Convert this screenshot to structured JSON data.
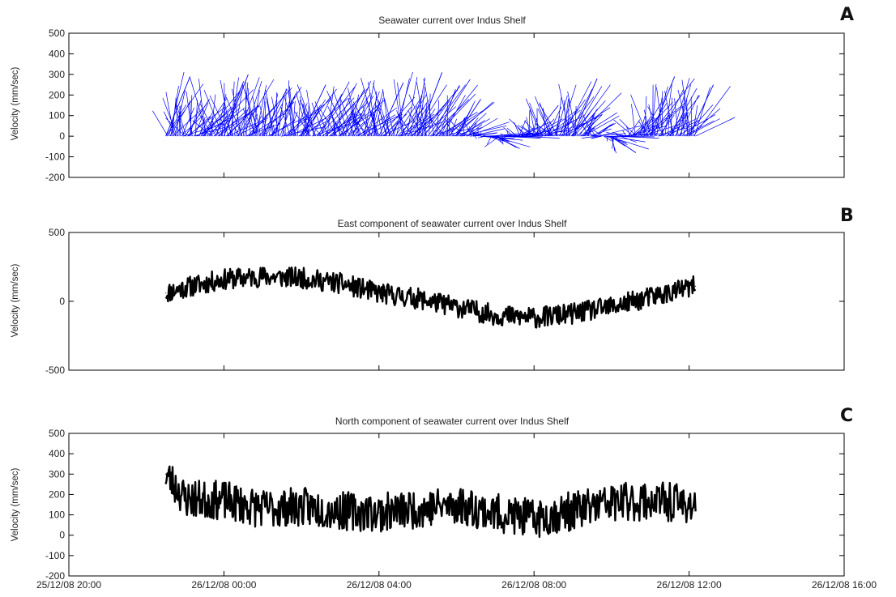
{
  "chart_data": [
    {
      "panel": "A",
      "type": "quiver",
      "title": "Seawater current over Indus Shelf",
      "ylabel": "Velocity (mm/sec)",
      "xlim": [
        "25/12/08 20:00",
        "26/12/08 16:00"
      ],
      "ylim": [
        -200,
        500
      ],
      "yticks": [
        -200,
        -100,
        0,
        100,
        200,
        300,
        400,
        500
      ],
      "color": "#0000ff",
      "data_time_range": [
        "25/12/08 22:30",
        "26/12/08 12:10"
      ],
      "stick_endpoints_sample": [
        {
          "x": "25/12/08 22:30",
          "y": 290
        },
        {
          "x": "25/12/08 23:00",
          "y": 180
        },
        {
          "x": "26/12/08 00:00",
          "y": 300
        },
        {
          "x": "26/12/08 01:00",
          "y": 230
        },
        {
          "x": "26/12/08 02:00",
          "y": 250
        },
        {
          "x": "26/12/08 03:00",
          "y": 230
        },
        {
          "x": "26/12/08 04:00",
          "y": 260
        },
        {
          "x": "26/12/08 05:00",
          "y": 310
        },
        {
          "x": "26/12/08 06:00",
          "y": 180
        },
        {
          "x": "26/12/08 07:00",
          "y": -60
        },
        {
          "x": "26/12/08 08:00",
          "y": 150
        },
        {
          "x": "26/12/08 09:00",
          "y": 280
        },
        {
          "x": "26/12/08 10:00",
          "y": -80
        },
        {
          "x": "26/12/08 11:00",
          "y": 290
        },
        {
          "x": "26/12/08 12:00",
          "y": 250
        }
      ]
    },
    {
      "panel": "B",
      "type": "line",
      "title": "East component of seawater current over Indus Shelf",
      "ylabel": "Velocity (mm/sec)",
      "xlim": [
        "25/12/08 20:00",
        "26/12/08 16:00"
      ],
      "ylim": [
        -500,
        500
      ],
      "yticks": [
        -500,
        0,
        500
      ],
      "color": "#000000",
      "series": [
        {
          "x": [
            "25/12/08 22:30",
            "25/12/08 23:00",
            "26/12/08 00:00",
            "26/12/08 01:00",
            "26/12/08 02:00",
            "26/12/08 03:00",
            "26/12/08 04:00",
            "26/12/08 05:00",
            "26/12/08 06:00",
            "26/12/08 07:00",
            "26/12/08 08:00",
            "26/12/08 09:00",
            "26/12/08 10:00",
            "26/12/08 11:00",
            "26/12/08 12:10"
          ],
          "values": [
            60,
            100,
            160,
            180,
            170,
            130,
            60,
            20,
            -40,
            -100,
            -120,
            -90,
            -40,
            30,
            110
          ]
        }
      ]
    },
    {
      "panel": "C",
      "type": "line",
      "title": "North component of seawater current over Indus Shelf",
      "ylabel": "Velocity (mm/sec)",
      "xlim": [
        "25/12/08 20:00",
        "26/12/08 16:00"
      ],
      "ylim": [
        -200,
        500
      ],
      "yticks": [
        -200,
        -100,
        0,
        100,
        200,
        300,
        400,
        500
      ],
      "xticks": [
        "25/12/08 20:00",
        "26/12/08 00:00",
        "26/12/08 04:00",
        "26/12/08 08:00",
        "26/12/08 12:00",
        "26/12/08 16:00"
      ],
      "color": "#000000",
      "series": [
        {
          "x": [
            "25/12/08 22:30",
            "25/12/08 23:00",
            "26/12/08 00:00",
            "26/12/08 01:00",
            "26/12/08 02:00",
            "26/12/08 03:00",
            "26/12/08 04:00",
            "26/12/08 05:00",
            "26/12/08 06:00",
            "26/12/08 07:00",
            "26/12/08 08:00",
            "26/12/08 09:00",
            "26/12/08 10:00",
            "26/12/08 11:00",
            "26/12/08 12:10"
          ],
          "values": [
            300,
            180,
            170,
            130,
            140,
            120,
            110,
            130,
            150,
            110,
            80,
            120,
            160,
            170,
            150
          ]
        }
      ]
    }
  ],
  "panel_letters": [
    "A",
    "B",
    "C"
  ]
}
